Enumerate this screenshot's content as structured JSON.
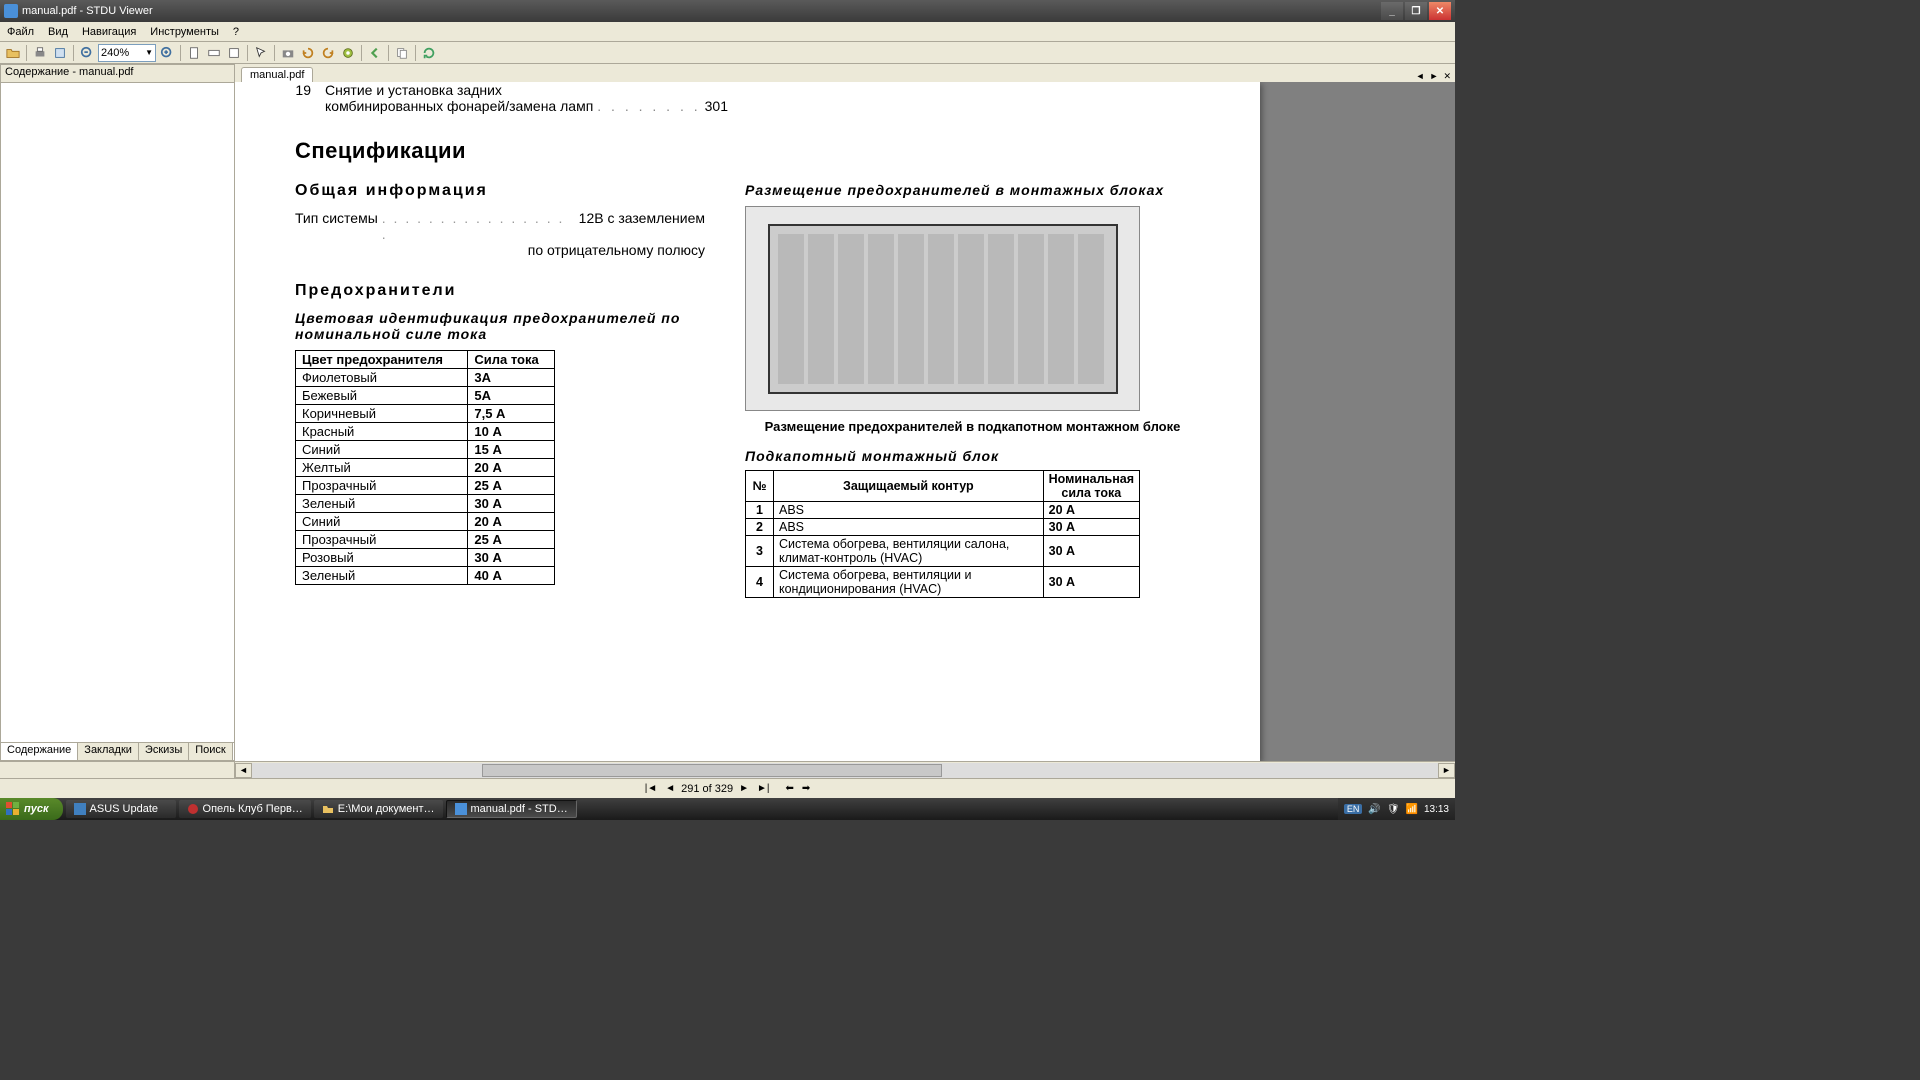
{
  "window": {
    "title": "manual.pdf - STDU Viewer"
  },
  "menu": {
    "file": "Файл",
    "view": "Вид",
    "navigation": "Навигация",
    "tools": "Инструменты",
    "help": "?"
  },
  "toolbar": {
    "zoom": "240%"
  },
  "sidebar": {
    "title": "Содержание - manual.pdf",
    "tabs": {
      "contents": "Содержание",
      "bookmarks": "Закладки",
      "thumbnails": "Эскизы",
      "search": "Поиск"
    }
  },
  "doctab": "manual.pdf",
  "status": {
    "page_info": "291 of 329"
  },
  "document": {
    "toc": {
      "num": "19",
      "text1": "Снятие и установка задних",
      "text2": "комбинированных фонарей/замена ламп",
      "page": "301"
    },
    "h_spec": "Спецификации",
    "h_general": "Общая  информация",
    "system_label": "Тип системы",
    "system_val1": "12В  с  заземлением",
    "system_val2": "по отрицательному полюсу",
    "h_fuses": "Предохранители",
    "fuse_color_title": "Цветовая  идентификация  предохранителей  по номинальной  силе  тока",
    "fuse_table": {
      "h1": "Цвет предохранителя",
      "h2": "Сила тока",
      "rows": [
        [
          "Фиолетовый",
          "3А"
        ],
        [
          "Бежевый",
          "5А"
        ],
        [
          "Коричневый",
          "7,5  А"
        ],
        [
          "Красный",
          "10   А"
        ],
        [
          "Синий",
          "15   А"
        ],
        [
          "Желтый",
          "20   А"
        ],
        [
          "Прозрачный",
          "25   А"
        ],
        [
          "Зеленый",
          "30   А"
        ],
        [
          "Синий",
          "20   А"
        ],
        [
          "Прозрачный",
          "25   А"
        ],
        [
          "Розовый",
          "30   А"
        ],
        [
          "Зеленый",
          "40   А"
        ]
      ]
    },
    "mounting_title": "Размещение   предохранителей   в   монтажных  блоках",
    "caption": "Размещение предохранителей в подкапотном монтажном блоке",
    "block_title": "Подкапотный     монтажный     блок",
    "block_table": {
      "h1": "№",
      "h2": "Защищаемый контур",
      "h3": "Номинальная сила тока",
      "rows": [
        [
          "1",
          "ABS",
          "20   А"
        ],
        [
          "2",
          "ABS",
          "30   А"
        ],
        [
          "3",
          "Система обогрева, вентиляции салона, климат-контроль (HVAC)",
          "30  А"
        ],
        [
          "4",
          "Система обогрева, вентиляции и кондиционирования  (HVAC)",
          "30  А"
        ]
      ]
    }
  },
  "taskbar": {
    "start": "пуск",
    "items": {
      "asus": "ASUS Update",
      "opel": "Опель Клуб Перв…",
      "explorer": "E:\\Мои документ…",
      "stdu": "manual.pdf - STD…"
    },
    "lang": "EN",
    "time": "13:13"
  }
}
